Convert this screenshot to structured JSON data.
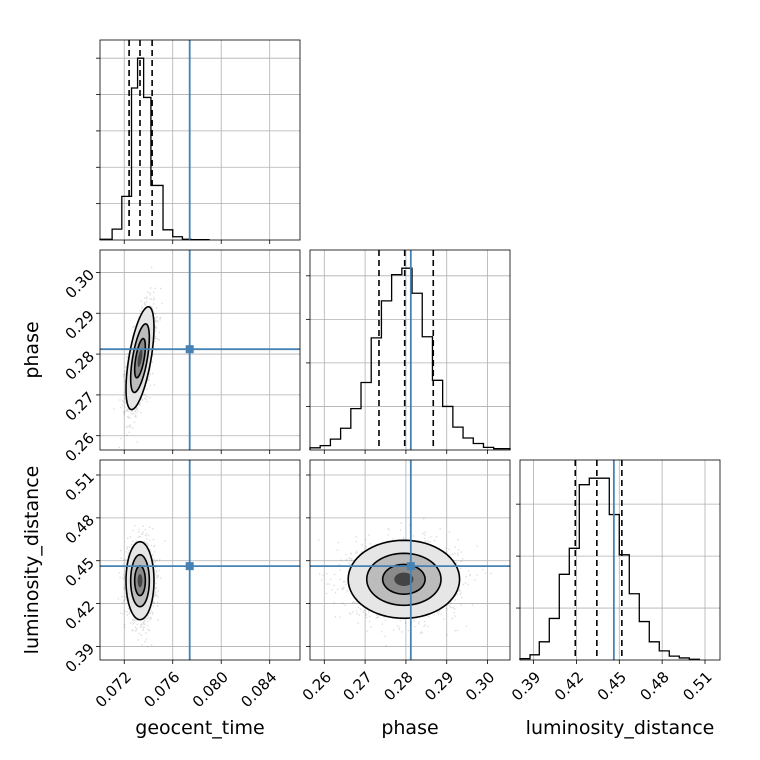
{
  "chart_data": {
    "type": "corner",
    "grid": true,
    "truth_color": "#4682b4",
    "hist_color": "#000000",
    "parameters": [
      {
        "name": "geocent_time",
        "label": "geocent_time",
        "range": [
          0.07,
          0.0865
        ],
        "ticks": [
          0.072,
          0.076,
          0.08,
          0.084
        ],
        "tick_labels": [
          "0.072",
          "0.076",
          "0.080",
          "0.084"
        ],
        "truth": 0.0774,
        "quantiles": [
          0.0724,
          0.0733,
          0.0743
        ],
        "hist_edges": [
          0.07,
          0.071,
          0.0718,
          0.0726,
          0.0731,
          0.0736,
          0.0742,
          0.0752,
          0.076,
          0.0768,
          0.0775,
          0.079
        ],
        "hist_counts": [
          2,
          30,
          120,
          418,
          500,
          392,
          150,
          28,
          9,
          2,
          1
        ]
      },
      {
        "name": "phase",
        "label": "phase",
        "range": [
          0.2565,
          0.3055
        ],
        "ticks": [
          0.26,
          0.27,
          0.28,
          0.29,
          0.3
        ],
        "tick_labels": [
          "0.26",
          "0.27",
          "0.28",
          "0.29",
          "0.30"
        ],
        "truth": 0.2812,
        "quantiles": [
          0.2734,
          0.2797,
          0.2867
        ],
        "hist_edges": [
          0.2565,
          0.259,
          0.2615,
          0.264,
          0.2665,
          0.269,
          0.2715,
          0.274,
          0.2765,
          0.279,
          0.2815,
          0.284,
          0.2865,
          0.289,
          0.2915,
          0.294,
          0.2965,
          0.299,
          0.3015,
          0.3055
        ],
        "hist_counts": [
          10,
          20,
          50,
          100,
          190,
          310,
          515,
          685,
          805,
          835,
          720,
          520,
          320,
          200,
          105,
          55,
          30,
          12,
          6
        ]
      },
      {
        "name": "luminosity_distance",
        "label": "luminosity_distance",
        "range": [
          0.3805,
          0.5205
        ],
        "ticks": [
          0.39,
          0.42,
          0.45,
          0.48,
          0.51
        ],
        "tick_labels": [
          "0.39",
          "0.42",
          "0.45",
          "0.48",
          "0.51"
        ],
        "truth": 0.4462,
        "quantiles": [
          0.4192,
          0.4343,
          0.4518
        ],
        "hist_edges": [
          0.3805,
          0.3875,
          0.394,
          0.401,
          0.408,
          0.415,
          0.422,
          0.429,
          0.436,
          0.443,
          0.45,
          0.457,
          0.464,
          0.471,
          0.478,
          0.485,
          0.492,
          0.499,
          0.506
        ],
        "hist_counts": [
          5,
          20,
          70,
          160,
          330,
          430,
          675,
          700,
          700,
          560,
          405,
          255,
          148,
          70,
          35,
          15,
          8,
          3
        ]
      }
    ],
    "pairs": [
      {
        "x": "geocent_time",
        "y": "phase",
        "center": [
          0.0733,
          0.279
        ],
        "sigma": [
          0.00055,
          0.006
        ],
        "rho": 0.6,
        "levels": [
          0.8,
          1.4,
          2.1
        ]
      },
      {
        "x": "geocent_time",
        "y": "luminosity_distance",
        "center": [
          0.0733,
          0.436
        ],
        "sigma": [
          0.00055,
          0.013
        ],
        "rho": 0.0,
        "levels": [
          0.8,
          1.4,
          2.1
        ]
      },
      {
        "x": "phase",
        "y": "luminosity_distance",
        "center": [
          0.2795,
          0.437
        ],
        "sigma": [
          0.0065,
          0.013
        ],
        "rho": 0.0,
        "levels": [
          0.8,
          1.4,
          2.1
        ]
      }
    ]
  }
}
